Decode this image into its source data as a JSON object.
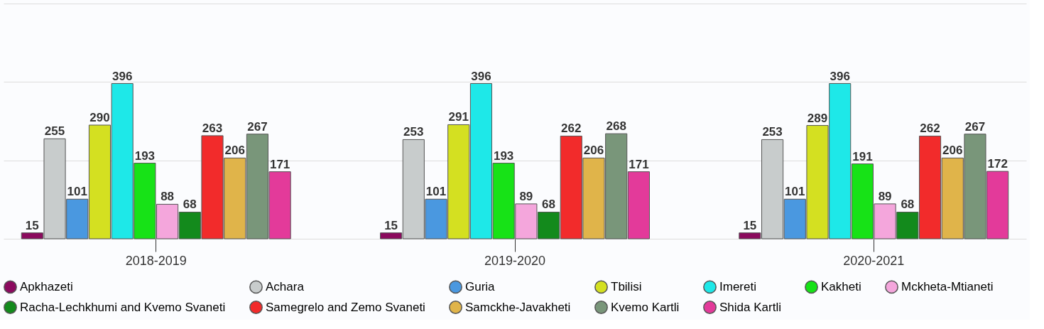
{
  "chart_data": {
    "type": "bar",
    "categories": [
      "2018-2019",
      "2019-2020",
      "2020-2021"
    ],
    "series": [
      {
        "name": "Apkhazeti",
        "color": "#8b0a5e",
        "values": [
          15,
          15,
          15
        ]
      },
      {
        "name": "Achara",
        "color": "#c8cccc",
        "values": [
          255,
          253,
          253
        ]
      },
      {
        "name": "Guria",
        "color": "#4a98e0",
        "values": [
          101,
          101,
          101
        ]
      },
      {
        "name": "Tbilisi",
        "color": "#d4e021",
        "values": [
          290,
          291,
          289
        ]
      },
      {
        "name": "Imereti",
        "color": "#1ee8e8",
        "values": [
          396,
          396,
          396
        ]
      },
      {
        "name": "Kakheti",
        "color": "#17e217",
        "values": [
          193,
          193,
          191
        ]
      },
      {
        "name": "Mckheta-Mtianeti",
        "color": "#f4a6dc",
        "values": [
          88,
          89,
          89
        ]
      },
      {
        "name": "Racha-Lechkhumi and Kvemo Svaneti",
        "color": "#138a1c",
        "values": [
          68,
          68,
          68
        ]
      },
      {
        "name": "Samegrelo and Zemo Svaneti",
        "color": "#f22b2b",
        "values": [
          263,
          262,
          262
        ]
      },
      {
        "name": "Samckhe-Javakheti",
        "color": "#e0b44a",
        "values": [
          206,
          206,
          206
        ]
      },
      {
        "name": "Kvemo Kartli",
        "color": "#79967a",
        "values": [
          267,
          268,
          267
        ]
      },
      {
        "name": "Shida Kartli",
        "color": "#e33a9a",
        "values": [
          171,
          171,
          172
        ]
      }
    ],
    "ylim": [
      0,
      600
    ],
    "yticks": [
      {
        "value": 0,
        "label": null
      },
      {
        "value": 200,
        "label": null
      },
      {
        "value": 400,
        "label": null
      },
      {
        "value": 600,
        "label": null
      }
    ],
    "tick_labels": "x",
    "grid": "y",
    "data_labels": true,
    "legend": "bottom"
  }
}
